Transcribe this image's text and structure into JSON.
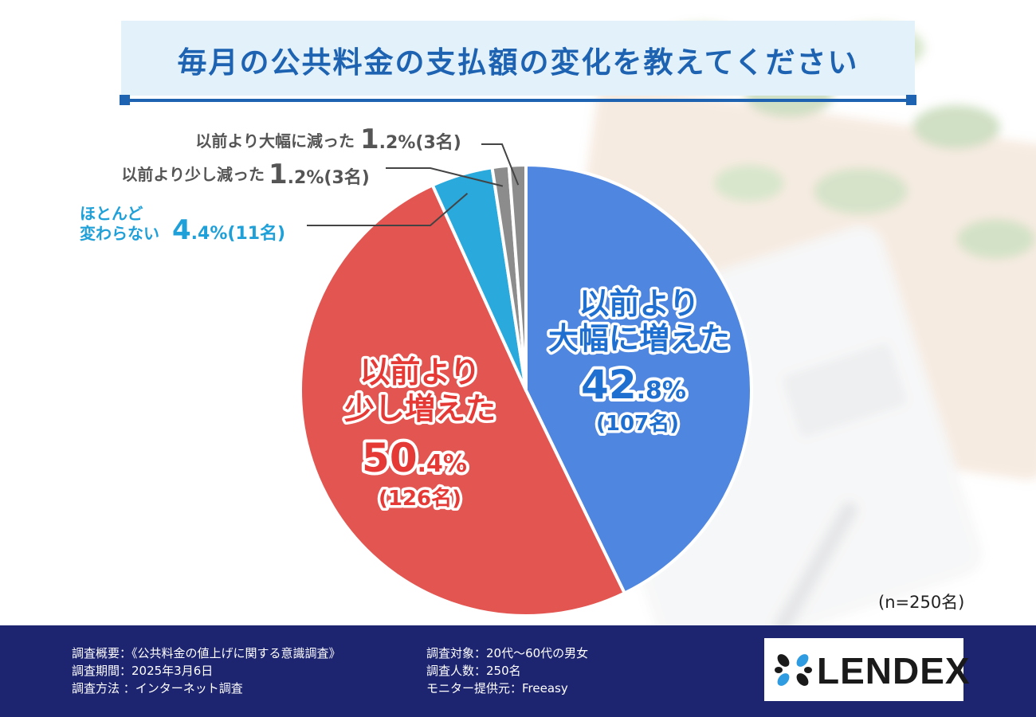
{
  "title": "毎月の公共料金の支払額の変化を教えてください",
  "sample_note": "(n=250名)",
  "chart_data": {
    "type": "pie",
    "title": "毎月の公共料金の支払額の変化を教えてください",
    "unit": "%",
    "start": "top",
    "direction": "clockwise",
    "slices": [
      {
        "name": "以前より大幅に増えた",
        "value": 42.8,
        "count": "(107名)",
        "big": "42",
        "small": ".8%",
        "color": "#4f86e0",
        "label_lines": [
          "以前より",
          "大幅に増えた"
        ],
        "text_color": "#1e6fd0"
      },
      {
        "name": "以前より少し増えた",
        "value": 50.4,
        "count": "(126名)",
        "big": "50",
        "small": ".4%",
        "color": "#e35550",
        "label_lines": [
          "以前より",
          "少し増えた"
        ],
        "text_color": "#e53935"
      },
      {
        "name": "ほとんど変わらない",
        "value": 4.4,
        "count": "(11名)",
        "big": "4",
        "small": ".4%",
        "color": "#29a9dc",
        "label_lines": [
          "ほとんど",
          "変わらない"
        ],
        "text_color": "#1fa0d8"
      },
      {
        "name": "以前より少し減った",
        "value": 1.2,
        "count": "(3名)",
        "big": "1",
        "small": ".2%",
        "color": "#8c8c8c",
        "label_lines": [
          "以前より少し減った"
        ],
        "text_color": "#555555"
      },
      {
        "name": "以前より大幅に減った",
        "value": 1.2,
        "count": "(3名)",
        "big": "1",
        "small": ".2%",
        "color": "#8c8c8c",
        "label_lines": [
          "以前より大幅に減った"
        ],
        "text_color": "#555555"
      }
    ]
  },
  "footer": {
    "left": [
      "調査概要：《公共料金の値上げに関する意識調査》",
      "調査期間：2025年3月6日",
      "調査方法 ：インターネット調査"
    ],
    "right": [
      "調査対象：20代〜60代の男女",
      "調査人数：250名",
      "モニター提供元：Freeasy"
    ],
    "logo": "LENDEX"
  }
}
